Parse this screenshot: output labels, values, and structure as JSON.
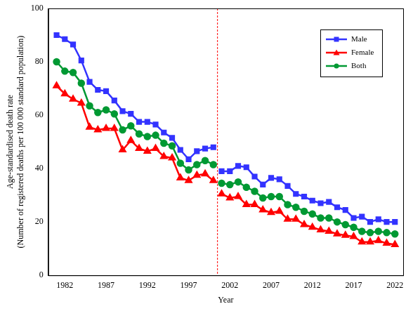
{
  "chart_data": {
    "type": "line",
    "x_label": "Year",
    "y_label": [
      "Age-standardised death rate",
      "(Number of registered deaths per 100 000 standard population)"
    ],
    "x": [
      1981,
      1982,
      1983,
      1984,
      1985,
      1986,
      1987,
      1988,
      1989,
      1990,
      1991,
      1992,
      1993,
      1994,
      1995,
      1996,
      1997,
      1998,
      1999,
      2000,
      2001,
      2002,
      2003,
      2004,
      2005,
      2006,
      2007,
      2008,
      2009,
      2010,
      2011,
      2012,
      2013,
      2014,
      2015,
      2016,
      2017,
      2018,
      2019,
      2020,
      2021,
      2022
    ],
    "series": [
      {
        "name": "Male",
        "color": "#3333ff",
        "marker": "square",
        "values": [
          90,
          88.5,
          86.5,
          80.5,
          72.5,
          69.5,
          69,
          65.5,
          61.5,
          60.5,
          57.5,
          57.5,
          56.5,
          53.5,
          51.5,
          47,
          43.5,
          46.5,
          47.5,
          48,
          39,
          39,
          41,
          40.5,
          37,
          34,
          36.5,
          36,
          33.5,
          30.5,
          29.5,
          28,
          27,
          27.5,
          25.5,
          24.5,
          21.5,
          22,
          20,
          21,
          20,
          20
        ]
      },
      {
        "name": "Female",
        "color": "#ff0000",
        "marker": "triangle",
        "values": [
          71,
          68,
          66,
          64.5,
          55.5,
          54.5,
          55,
          55,
          47,
          50.5,
          47.5,
          46.5,
          47.5,
          44.5,
          44,
          36.5,
          35.5,
          37.5,
          38,
          35.5,
          30.5,
          29,
          29.5,
          26.5,
          26.5,
          24.5,
          23.5,
          24,
          21,
          21,
          19,
          18,
          17,
          16.5,
          15.5,
          15,
          14.5,
          12.5,
          12.5,
          13,
          12,
          11.5
        ]
      },
      {
        "name": "Both",
        "color": "#009933",
        "marker": "circle",
        "values": [
          80,
          76.5,
          76,
          72,
          63.5,
          61,
          62,
          60.5,
          54.5,
          56,
          53,
          52,
          52.5,
          49.5,
          48.5,
          42,
          39.5,
          41.5,
          43,
          41.5,
          34.5,
          34,
          35,
          33,
          31.5,
          29,
          29.5,
          29.5,
          26.5,
          25.5,
          24,
          23,
          21.5,
          21.5,
          20,
          19,
          18,
          16.5,
          16,
          16.5,
          16,
          15.5
        ]
      }
    ],
    "xlim": [
      1980,
      2023
    ],
    "xticks": [
      1982,
      1987,
      1992,
      1997,
      2002,
      2007,
      2012,
      2017,
      2022
    ],
    "ylim": [
      0,
      100
    ],
    "yticks": [
      0,
      20,
      40,
      60,
      80,
      100
    ],
    "grid": false,
    "legend": "upper right",
    "annotations": [
      {
        "type": "vline",
        "x": 2000.5,
        "color": "#ff0000",
        "line_style": "dashed"
      }
    ]
  }
}
